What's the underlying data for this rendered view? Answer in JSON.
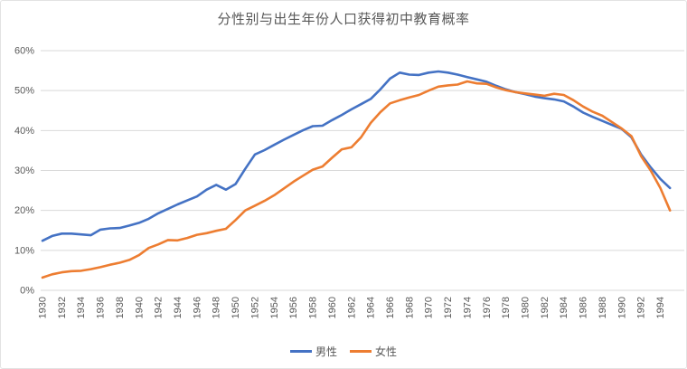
{
  "title": "分性别与出生年份人口获得初中教育概率",
  "colors": {
    "male": "#4472C4",
    "female": "#ED7D31",
    "gridline": "#D9D9D9",
    "axis_text": "#595959",
    "title_text": "#595959"
  },
  "legend": {
    "items": [
      {
        "id": "male",
        "label": "男性",
        "color": "#4472C4"
      },
      {
        "id": "female",
        "label": "女性",
        "color": "#ED7D31"
      }
    ]
  },
  "y_axis": {
    "tick_labels": [
      "0%",
      "10%",
      "20%",
      "30%",
      "40%",
      "50%",
      "60%"
    ],
    "tick_values": [
      0,
      10,
      20,
      30,
      40,
      50,
      60
    ]
  },
  "x_axis": {
    "tick_labels": [
      "1930",
      "1932",
      "1934",
      "1936",
      "1938",
      "1940",
      "1942",
      "1944",
      "1946",
      "1948",
      "1950",
      "1952",
      "1954",
      "1956",
      "1958",
      "1960",
      "1962",
      "1964",
      "1966",
      "1968",
      "1970",
      "1972",
      "1974",
      "1976",
      "1978",
      "1980",
      "1982",
      "1984",
      "1986",
      "1988",
      "1990",
      "1992",
      "1994"
    ]
  },
  "chart_data": {
    "type": "line",
    "title": "分性别与出生年份人口获得初中教育概率",
    "xlabel": "",
    "ylabel": "",
    "unit": "%",
    "ylim": [
      0,
      60
    ],
    "grid": true,
    "legend_position": "bottom",
    "x": [
      1930,
      1931,
      1932,
      1933,
      1934,
      1935,
      1936,
      1937,
      1938,
      1939,
      1940,
      1941,
      1942,
      1943,
      1944,
      1945,
      1946,
      1947,
      1948,
      1949,
      1950,
      1951,
      1952,
      1953,
      1954,
      1955,
      1956,
      1957,
      1958,
      1959,
      1960,
      1961,
      1962,
      1963,
      1964,
      1965,
      1966,
      1967,
      1968,
      1969,
      1970,
      1971,
      1972,
      1973,
      1974,
      1975,
      1976,
      1977,
      1978,
      1979,
      1980,
      1981,
      1982,
      1983,
      1984,
      1985,
      1986,
      1987,
      1988,
      1989,
      1990,
      1991,
      1992,
      1993,
      1994,
      1995
    ],
    "series": [
      {
        "id": "male",
        "name": "男性",
        "color": "#4472C4",
        "values": [
          12.4,
          13.6,
          14.2,
          14.2,
          14.0,
          13.8,
          15.2,
          15.5,
          15.6,
          16.2,
          16.9,
          17.9,
          19.3,
          20.4,
          21.5,
          22.5,
          23.5,
          25.2,
          26.4,
          25.2,
          26.6,
          30.4,
          34.0,
          35.1,
          36.4,
          37.7,
          38.9,
          40.1,
          41.1,
          41.2,
          42.6,
          43.9,
          45.3,
          46.6,
          47.9,
          50.3,
          53.0,
          54.5,
          54.0,
          53.9,
          54.5,
          54.8,
          54.5,
          54.0,
          53.4,
          52.8,
          52.2,
          51.2,
          50.3,
          49.6,
          49.1,
          48.5,
          48.1,
          47.8,
          47.3,
          46.0,
          44.5,
          43.4,
          42.4,
          41.4,
          40.4,
          38.3,
          34.0,
          30.8,
          27.9,
          25.6
        ]
      },
      {
        "id": "female",
        "name": "女性",
        "color": "#ED7D31",
        "values": [
          3.2,
          4.0,
          4.5,
          4.8,
          4.9,
          5.3,
          5.8,
          6.4,
          6.9,
          7.6,
          8.8,
          10.6,
          11.5,
          12.6,
          12.5,
          13.1,
          13.9,
          14.3,
          14.9,
          15.4,
          17.6,
          20.0,
          21.2,
          22.4,
          23.8,
          25.5,
          27.2,
          28.7,
          30.2,
          31.0,
          33.2,
          35.3,
          35.8,
          38.3,
          41.9,
          44.6,
          46.8,
          47.6,
          48.3,
          48.9,
          50.0,
          51.0,
          51.3,
          51.5,
          52.3,
          51.8,
          51.7,
          50.8,
          50.1,
          49.6,
          49.3,
          49.0,
          48.7,
          49.2,
          48.9,
          47.6,
          46.0,
          44.7,
          43.7,
          42.1,
          40.5,
          38.6,
          33.6,
          30.0,
          25.6,
          20.0
        ]
      }
    ]
  }
}
